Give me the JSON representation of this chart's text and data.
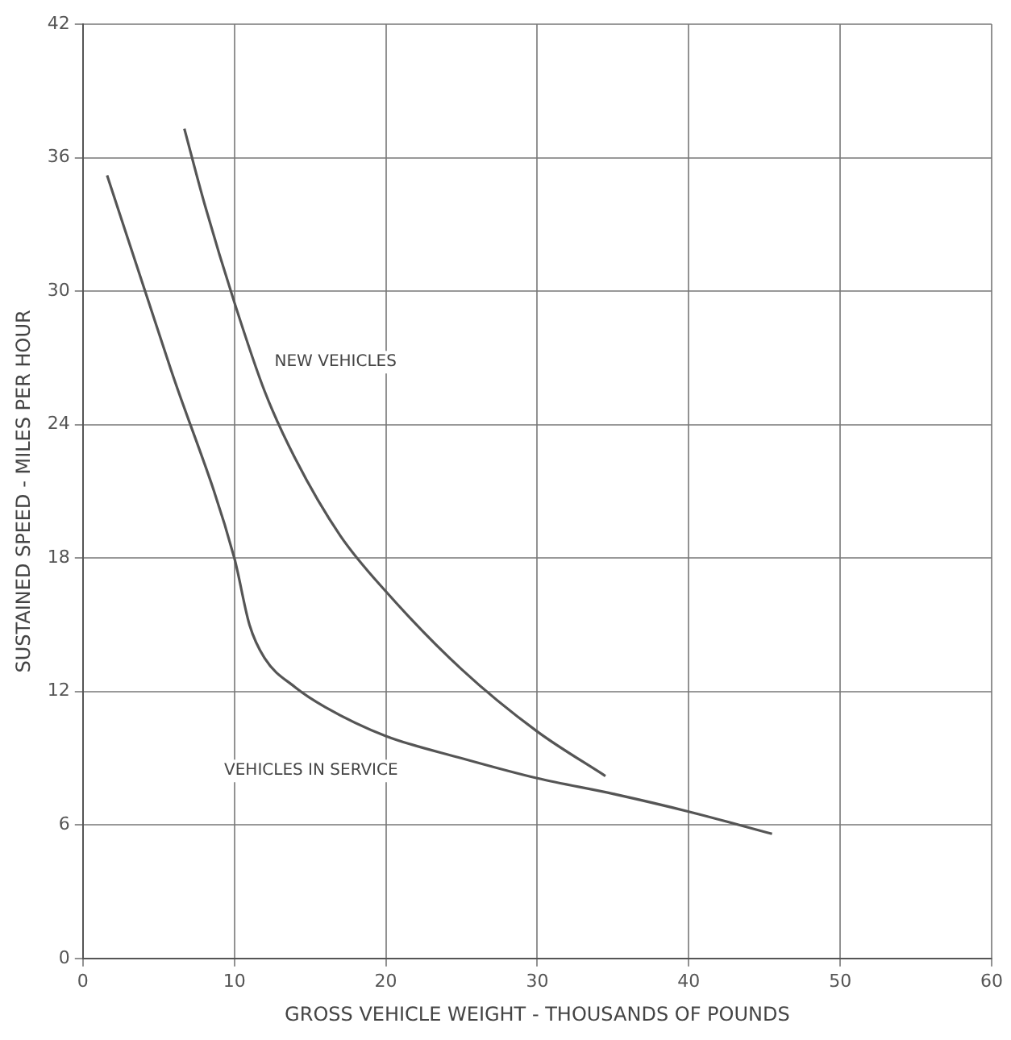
{
  "chart_data": {
    "type": "line",
    "xlabel": "GROSS VEHICLE WEIGHT - THOUSANDS OF POUNDS",
    "ylabel": "SUSTAINED SPEED - MILES PER HOUR",
    "xlim": [
      0,
      60
    ],
    "xticks": [
      0,
      10,
      20,
      30,
      40,
      50,
      60
    ],
    "ylim": [
      0,
      42
    ],
    "yticks": [
      0,
      6,
      12,
      18,
      24,
      30,
      36,
      42
    ],
    "grid": true,
    "legend": false,
    "marker": "none",
    "line_style": "solid",
    "series": [
      {
        "name": "NEW VEHICLES",
        "color": "#555555",
        "x": [
          6.7,
          8,
          10,
          12,
          14,
          17,
          20,
          25,
          30,
          34.5
        ],
        "values": [
          37.3,
          34,
          29.5,
          25.5,
          22.5,
          19,
          16.5,
          13,
          10.2,
          8.2
        ]
      },
      {
        "name": "VEHICLES IN SERVICE",
        "color": "#555555",
        "x": [
          1.6,
          5.8,
          10,
          11,
          12,
          14,
          16,
          20,
          25,
          30,
          35,
          40,
          45.5
        ],
        "values": [
          35.2,
          26.5,
          18,
          15,
          13.5,
          12.2,
          11.3,
          10,
          9,
          8.1,
          7.4,
          6.6,
          5.6
        ]
      }
    ]
  }
}
